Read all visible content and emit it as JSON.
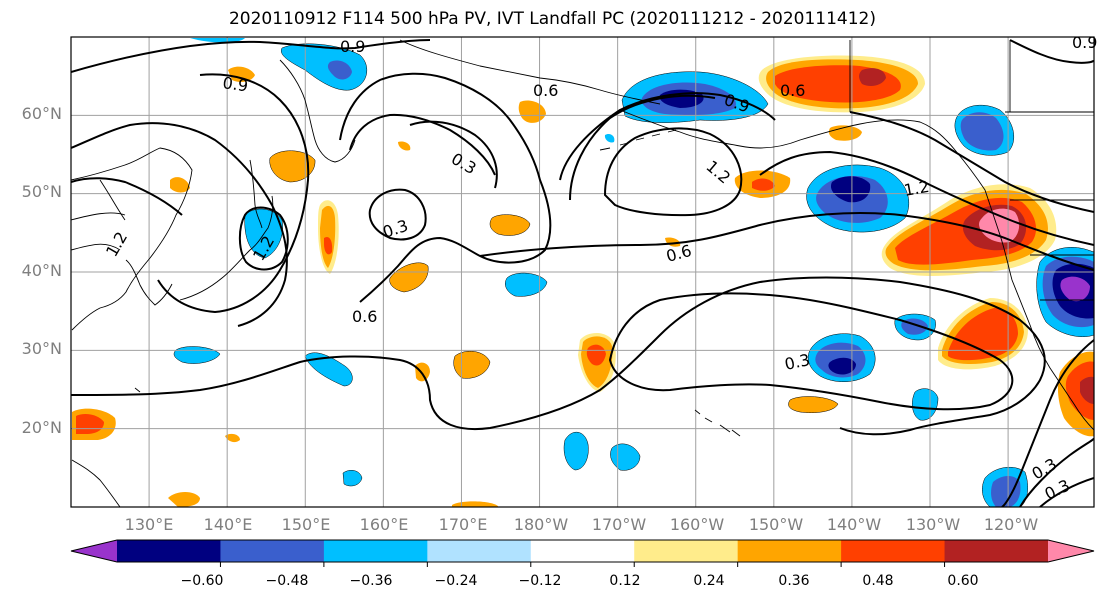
{
  "title": "2020110912 F114 500 hPa PV, IVT Landfall PC (2020111212 - 2020111412)",
  "axes": {
    "lat_ticks": [
      "60°N",
      "50°N",
      "40°N",
      "30°N",
      "20°N"
    ],
    "lon_ticks": [
      "130°E",
      "140°E",
      "150°E",
      "160°E",
      "170°E",
      "180°W",
      "170°W",
      "160°W",
      "150°W",
      "140°W",
      "130°W",
      "120°W"
    ]
  },
  "contour_labels": [
    "0.9",
    "0.9",
    "0.6",
    "0.9",
    "0.6",
    "0.3",
    "1.2",
    "0.3",
    "1.2",
    "1.2",
    "0.6",
    "0.6",
    "0.3",
    "0.3",
    "0.3",
    "0.9",
    "1.2"
  ],
  "colorbar": {
    "tick_labels": [
      "−0.60",
      "−0.48",
      "−0.36",
      "−0.24",
      "−0.12",
      "0.12",
      "0.24",
      "0.36",
      "0.48",
      "0.60"
    ],
    "colors": [
      "#9933cc",
      "#000080",
      "#3a5fcd",
      "#00bfff",
      "#b0e2ff",
      "#ffffff",
      "#ffec8b",
      "#ffa500",
      "#ff4000",
      "#b22222",
      "#ff88aa"
    ]
  },
  "chart_data": {
    "type": "heatmap",
    "title": "2020110912 F114 500 hPa PV, IVT Landfall PC (2020111212 - 2020111412)",
    "lon_range_deg_east": [
      120,
      251
    ],
    "lat_range_deg_north": [
      10,
      70
    ],
    "levels": [
      -0.6,
      -0.48,
      -0.36,
      -0.24,
      -0.12,
      0.12,
      0.24,
      0.36,
      0.48,
      0.6
    ],
    "contour_levels": [
      0.3,
      0.6,
      0.9,
      1.2
    ],
    "grid": true
  }
}
